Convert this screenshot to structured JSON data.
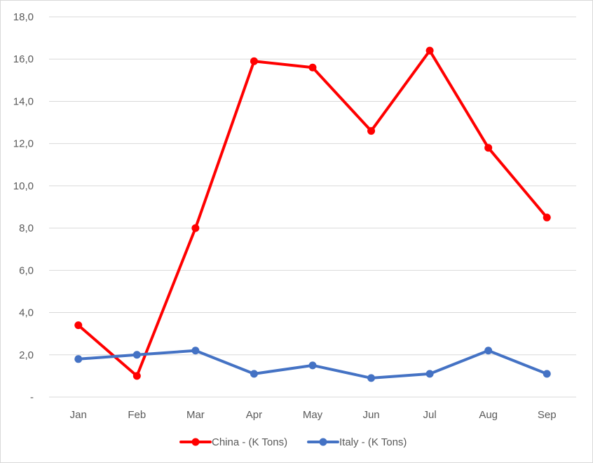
{
  "chart_data": {
    "type": "line",
    "categories": [
      "Jan",
      "Feb",
      "Mar",
      "Apr",
      "May",
      "Jun",
      "Jul",
      "Aug",
      "Sep"
    ],
    "series": [
      {
        "name": "China - (K Tons)",
        "color": "#ff0000",
        "values": [
          3.4,
          1.0,
          8.0,
          15.9,
          15.6,
          12.6,
          16.4,
          11.8,
          8.5
        ]
      },
      {
        "name": "Italy - (K Tons)",
        "color": "#4472c4",
        "values": [
          1.8,
          2.0,
          2.2,
          1.1,
          1.5,
          0.9,
          1.1,
          2.2,
          1.1
        ]
      }
    ],
    "ylim": [
      0,
      18
    ],
    "yticks": [
      "-",
      "2,0",
      "4,0",
      "6,0",
      "8,0",
      "10,0",
      "12,0",
      "14,0",
      "16,0",
      "18,0"
    ],
    "ytick_values": [
      0,
      2,
      4,
      6,
      8,
      10,
      12,
      14,
      16,
      18
    ],
    "grid": true,
    "legend": "bottom-center",
    "title": "",
    "xlabel": "",
    "ylabel": ""
  }
}
